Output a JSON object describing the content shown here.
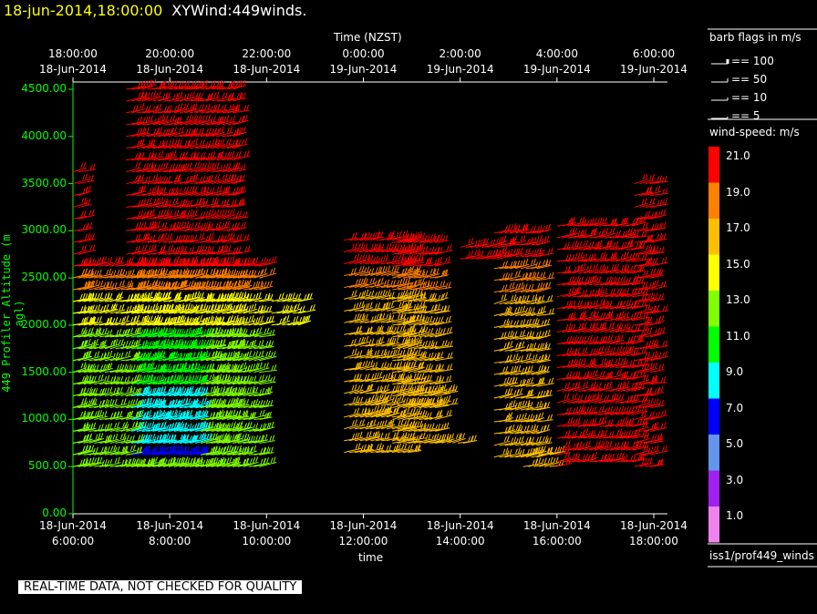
{
  "header": {
    "datetime": "18-jun-2014,18:00:00",
    "product": "XYWind:449winds."
  },
  "colors": {
    "background": "#000000",
    "axis": "#ffffff",
    "yaxis": "#00ff00",
    "date_text": "#ffff00"
  },
  "chart_data": {
    "type": "scatter",
    "description_type": "wind-barb time-height plot",
    "top_axis": {
      "title": "Time (NZST)",
      "ticks": [
        {
          "time": "18:00:00",
          "date": "18-Jun-2014"
        },
        {
          "time": "20:00:00",
          "date": "18-Jun-2014"
        },
        {
          "time": "22:00:00",
          "date": "18-Jun-2014"
        },
        {
          "time": "0:00:00",
          "date": "19-Jun-2014"
        },
        {
          "time": "2:00:00",
          "date": "19-Jun-2014"
        },
        {
          "time": "4:00:00",
          "date": "19-Jun-2014"
        },
        {
          "time": "6:00:00",
          "date": "19-Jun-2014"
        }
      ]
    },
    "bottom_axis": {
      "title": "time",
      "ticks": [
        {
          "date": "18-Jun-2014",
          "time": "6:00:00"
        },
        {
          "date": "18-Jun-2014",
          "time": "8:00:00"
        },
        {
          "date": "18-Jun-2014",
          "time": "10:00:00"
        },
        {
          "date": "18-Jun-2014",
          "time": "12:00:00"
        },
        {
          "date": "18-Jun-2014",
          "time": "14:00:00"
        },
        {
          "date": "18-Jun-2014",
          "time": "16:00:00"
        },
        {
          "date": "18-Jun-2014",
          "time": "18:00:00"
        }
      ],
      "xlim_hours": [
        6,
        18
      ]
    },
    "y_axis": {
      "title": "449 Profiler Altitude (m agl)",
      "ticks": [
        "0.00",
        "500.00",
        "1000.00",
        "1500.00",
        "2000.00",
        "2500.00",
        "3000.00",
        "3500.00",
        "4000.00",
        "4500.00"
      ],
      "ylim": [
        0,
        4600
      ]
    },
    "legend_flags": {
      "title": "barb flags in m/s",
      "entries": [
        "== 100",
        "== 50",
        "== 10",
        "== 5"
      ]
    },
    "colorbar": {
      "title": "wind-speed: m/s",
      "labels": [
        "21.0",
        "19.0",
        "17.0",
        "15.0",
        "13.0",
        "11.0",
        "9.0",
        "7.0",
        "5.0",
        "3.0",
        "1.0"
      ],
      "colors": [
        "#ff0000",
        "#ff7f00",
        "#ffbf00",
        "#ffff00",
        "#80ff00",
        "#00ff00",
        "#00ffff",
        "#0000ff",
        "#6495ed",
        "#a020f0",
        "#ee82ee"
      ]
    },
    "segments": [
      {
        "t0": 6.0,
        "t1": 6.15,
        "z0": 500,
        "z1": 3700
      },
      {
        "t0": 6.0,
        "t1": 9.85,
        "z0": 500,
        "z1": 2700
      },
      {
        "t0": 7.1,
        "t1": 9.4,
        "z0": 500,
        "z1": 4550
      },
      {
        "t0": 10.1,
        "t1": 10.7,
        "z0": 2000,
        "z1": 2300
      },
      {
        "t0": 11.6,
        "t1": 13.0,
        "z0": 650,
        "z1": 2950
      },
      {
        "t0": 12.0,
        "t1": 12.4,
        "z0": 1050,
        "z1": 1200
      },
      {
        "t0": 12.6,
        "t1": 13.5,
        "z0": 750,
        "z1": 2950
      },
      {
        "t0": 13.0,
        "t1": 13.7,
        "z0": 1150,
        "z1": 1300
      },
      {
        "t0": 13.4,
        "t1": 14.1,
        "z0": 750,
        "z1": 850
      },
      {
        "t0": 14.0,
        "t1": 14.8,
        "z0": 2700,
        "z1": 2900
      },
      {
        "t0": 14.7,
        "t1": 15.6,
        "z0": 600,
        "z1": 3000
      },
      {
        "t0": 15.3,
        "t1": 16.0,
        "z0": 500,
        "z1": 650
      },
      {
        "t0": 16.0,
        "t1": 17.6,
        "z0": 550,
        "z1": 3050
      },
      {
        "t0": 17.6,
        "t1": 18.0,
        "z0": 500,
        "z1": 3500
      }
    ]
  },
  "source": "iss1/prof449_winds",
  "qc_notice": "REAL-TIME DATA, NOT CHECKED FOR QUALITY"
}
